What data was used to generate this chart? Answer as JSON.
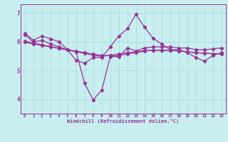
{
  "xlabel": "Windchill (Refroidissement éolien,°C)",
  "bg_color": "#c8eef0",
  "line_color": "#993399",
  "grid_color": "#aadddd",
  "xlim": [
    -0.5,
    23.5
  ],
  "ylim": [
    3.5,
    7.3
  ],
  "yticks": [
    4,
    5,
    6,
    7
  ],
  "xticks": [
    0,
    1,
    2,
    3,
    4,
    5,
    6,
    7,
    8,
    9,
    10,
    11,
    12,
    13,
    14,
    15,
    16,
    17,
    18,
    19,
    20,
    21,
    22,
    23
  ],
  "series": [
    [
      6.3,
      6.05,
      6.2,
      6.1,
      6.0,
      5.72,
      5.35,
      5.25,
      5.45,
      5.45,
      5.82,
      6.2,
      6.45,
      6.95,
      6.5,
      6.12,
      5.92,
      5.72,
      5.72,
      5.62,
      5.45,
      5.32,
      5.52,
      5.62
    ],
    [
      6.25,
      5.98,
      6.05,
      5.92,
      5.82,
      5.72,
      5.65,
      4.55,
      3.98,
      4.32,
      5.48,
      5.48,
      5.78,
      5.68,
      5.78,
      5.82,
      5.82,
      5.82,
      5.78,
      5.78,
      5.72,
      5.72,
      5.75,
      5.78
    ],
    [
      5.98,
      5.92,
      5.87,
      5.82,
      5.77,
      5.72,
      5.67,
      5.62,
      5.57,
      5.52,
      5.52,
      5.52,
      5.57,
      5.62,
      5.67,
      5.7,
      5.7,
      5.7,
      5.68,
      5.65,
      5.62,
      5.6,
      5.58,
      5.58
    ],
    [
      6.02,
      5.95,
      5.89,
      5.83,
      5.77,
      5.71,
      5.65,
      5.59,
      5.53,
      5.49,
      5.53,
      5.57,
      5.61,
      5.65,
      5.69,
      5.7,
      5.7,
      5.7,
      5.68,
      5.65,
      5.62,
      5.6,
      5.58,
      5.58
    ]
  ]
}
